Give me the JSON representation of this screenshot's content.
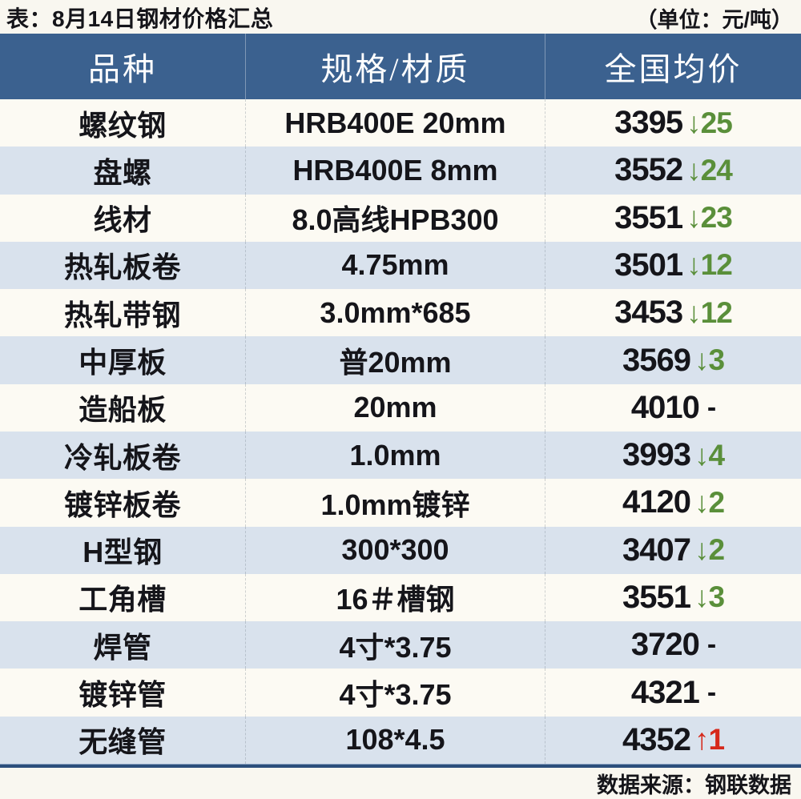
{
  "chart_data": {
    "type": "table",
    "title": "表：8月14日钢材价格汇总",
    "unit_note": "（单位：元/吨）",
    "columns": [
      "品种",
      "规格/材质",
      "全国均价"
    ],
    "rows": [
      {
        "variety": "螺纹钢",
        "spec": "HRB400E 20mm",
        "price": "3395",
        "change": -25,
        "change_display": "↓25",
        "direction": "down"
      },
      {
        "variety": "盘螺",
        "spec": "HRB400E 8mm",
        "price": "3552",
        "change": -24,
        "change_display": "↓24",
        "direction": "down"
      },
      {
        "variety": "线材",
        "spec": "8.0高线HPB300",
        "price": "3551",
        "change": -23,
        "change_display": "↓23",
        "direction": "down"
      },
      {
        "variety": "热轧板卷",
        "spec": "4.75mm",
        "price": "3501",
        "change": -12,
        "change_display": "↓12",
        "direction": "down"
      },
      {
        "variety": "热轧带钢",
        "spec": "3.0mm*685",
        "price": "3453",
        "change": -12,
        "change_display": "↓12",
        "direction": "down"
      },
      {
        "variety": "中厚板",
        "spec": "普20mm",
        "price": "3569",
        "change": -3,
        "change_display": "↓3",
        "direction": "down"
      },
      {
        "variety": "造船板",
        "spec": "20mm",
        "price": "4010",
        "change": 0,
        "change_display": "-",
        "direction": "flat"
      },
      {
        "variety": "冷轧板卷",
        "spec": "1.0mm",
        "price": "3993",
        "change": -4,
        "change_display": "↓4",
        "direction": "down"
      },
      {
        "variety": "镀锌板卷",
        "spec": "1.0mm镀锌",
        "price": "4120",
        "change": -2,
        "change_display": "↓2",
        "direction": "down"
      },
      {
        "variety": "H型钢",
        "spec": "300*300",
        "price": "3407",
        "change": -2,
        "change_display": "↓2",
        "direction": "down"
      },
      {
        "variety": "工角槽",
        "spec": "16＃槽钢",
        "price": "3551",
        "change": -3,
        "change_display": "↓3",
        "direction": "down"
      },
      {
        "variety": "焊管",
        "spec": "4寸*3.75",
        "price": "3720",
        "change": 0,
        "change_display": "-",
        "direction": "flat"
      },
      {
        "variety": "镀锌管",
        "spec": "4寸*3.75",
        "price": "4321",
        "change": 0,
        "change_display": "-",
        "direction": "flat"
      },
      {
        "variety": "无缝管",
        "spec": "108*4.5",
        "price": "4352",
        "change": 1,
        "change_display": "↑1",
        "direction": "up"
      }
    ],
    "source_note": "数据来源：钢联数据",
    "layout_hints": {
      "row_striping": "odd-white-even-blue",
      "alignment": "center"
    }
  },
  "colors": {
    "header_bg": "#3b618f",
    "row_white": "#fcfaf3",
    "row_alt_blue": "#d9e2ed",
    "down_green": "#5a8f3a",
    "up_red": "#d6281a",
    "separator_navy": "#2c4f7c",
    "text_black": "#15151a"
  }
}
